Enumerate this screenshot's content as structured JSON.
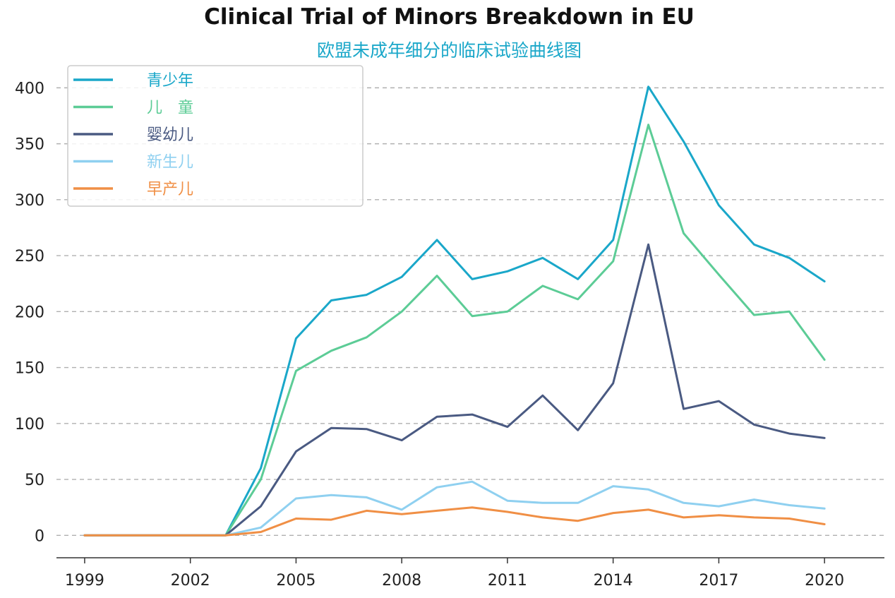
{
  "chart_data": {
    "type": "line",
    "title": "Clinical Trial of Minors Breakdown in EU",
    "subtitle": "欧盟未成年细分的临床试验曲线图",
    "xlabel": "",
    "ylabel": "",
    "x": [
      1999,
      2000,
      2001,
      2002,
      2003,
      2004,
      2005,
      2006,
      2007,
      2008,
      2009,
      2010,
      2011,
      2012,
      2013,
      2014,
      2015,
      2016,
      2017,
      2018,
      2019,
      2020
    ],
    "xticks": [
      "1999",
      "2002",
      "2005",
      "2008",
      "2011",
      "2014",
      "2017",
      "2020"
    ],
    "yticks": [
      "0",
      "50",
      "100",
      "150",
      "200",
      "250",
      "300",
      "350",
      "400"
    ],
    "xlim": [
      1998.2,
      2021.7
    ],
    "ylim": [
      -20,
      428
    ],
    "grid": "horizontal dashed",
    "legend_position": "top-left",
    "series": [
      {
        "name": "青少年",
        "color": "#1aa7c9",
        "values": [
          0,
          0,
          0,
          0,
          0,
          60,
          176,
          210,
          215,
          231,
          264,
          229,
          236,
          248,
          229,
          264,
          401,
          352,
          295,
          260,
          248,
          227
        ]
      },
      {
        "name": "儿　童",
        "color": "#5ccc96",
        "values": [
          0,
          0,
          0,
          0,
          0,
          50,
          147,
          165,
          177,
          200,
          232,
          196,
          200,
          223,
          211,
          245,
          367,
          270,
          233,
          197,
          200,
          157
        ]
      },
      {
        "name": "婴幼儿",
        "color": "#4a5a82",
        "values": [
          0,
          0,
          0,
          0,
          0,
          26,
          75,
          96,
          95,
          85,
          106,
          108,
          97,
          125,
          94,
          136,
          260,
          113,
          120,
          99,
          91,
          87
        ]
      },
      {
        "name": "新生儿",
        "color": "#8fd0f0",
        "values": [
          0,
          0,
          0,
          0,
          0,
          7,
          33,
          36,
          34,
          23,
          43,
          48,
          31,
          29,
          29,
          44,
          41,
          29,
          26,
          32,
          27,
          24
        ]
      },
      {
        "name": "早产儿",
        "color": "#f08f45",
        "values": [
          0,
          0,
          0,
          0,
          0,
          3,
          15,
          14,
          22,
          19,
          22,
          25,
          21,
          16,
          13,
          20,
          23,
          16,
          18,
          16,
          15,
          10
        ]
      }
    ]
  }
}
